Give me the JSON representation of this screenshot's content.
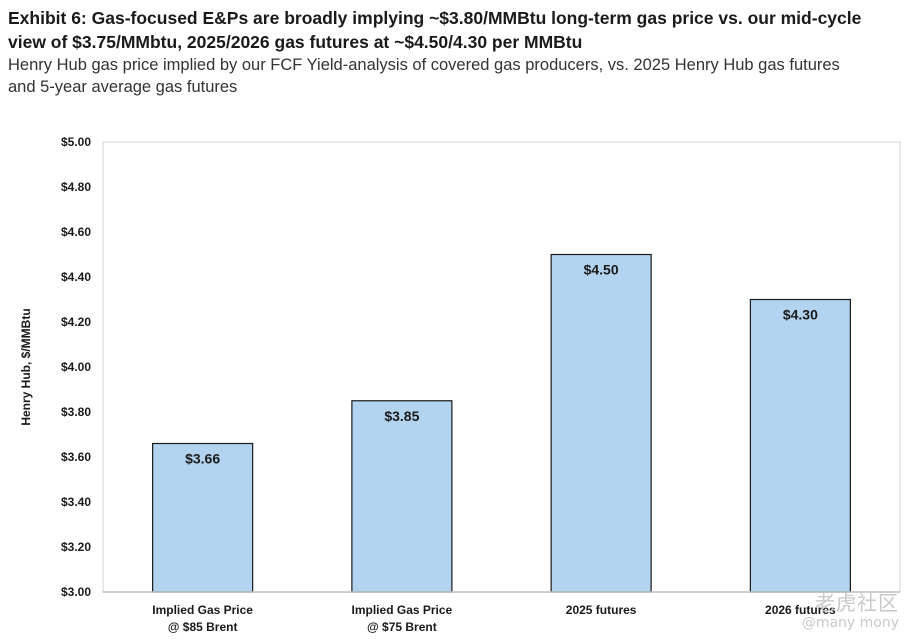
{
  "header": {
    "title_line1": "Exhibit 6: Gas-focused E&Ps are broadly implying ~$3.80/MMBtu long-term gas price vs. our mid-cycle",
    "title_line2": "view of $3.75/MMbtu, 2025/2026 gas futures at ~$4.50/4.30 per MMBtu",
    "subtitle_line1": "Henry Hub gas price implied by our FCF Yield-analysis of covered gas producers, vs. 2025 Henry Hub gas futures",
    "subtitle_line2": "and 5-year average gas futures"
  },
  "chart_data": {
    "type": "bar",
    "categories": [
      [
        "Implied Gas Price",
        "@ $85 Brent"
      ],
      [
        "Implied Gas Price",
        "@ $75 Brent"
      ],
      [
        "2025 futures"
      ],
      [
        "2026 futures"
      ]
    ],
    "values": [
      3.66,
      3.85,
      4.5,
      4.3
    ],
    "data_labels": [
      "$3.66",
      "$3.85",
      "$4.50",
      "$4.30"
    ],
    "ylabel": "Henry Hub, $/MMBtu",
    "ylim": [
      3.0,
      5.0
    ],
    "yticks": [
      3.0,
      3.2,
      3.4,
      3.6,
      3.8,
      4.0,
      4.2,
      4.4,
      4.6,
      4.8,
      5.0
    ],
    "ytick_labels": [
      "$3.00",
      "$3.20",
      "$3.40",
      "$3.60",
      "$3.80",
      "$4.00",
      "$4.20",
      "$4.40",
      "$4.60",
      "$4.80",
      "$5.00"
    ],
    "grid": false,
    "bar_fill": "#b3d4f0",
    "bar_stroke": "#1a1a1a"
  },
  "watermark": {
    "logo": "老虎社区",
    "user": "@many mony"
  }
}
